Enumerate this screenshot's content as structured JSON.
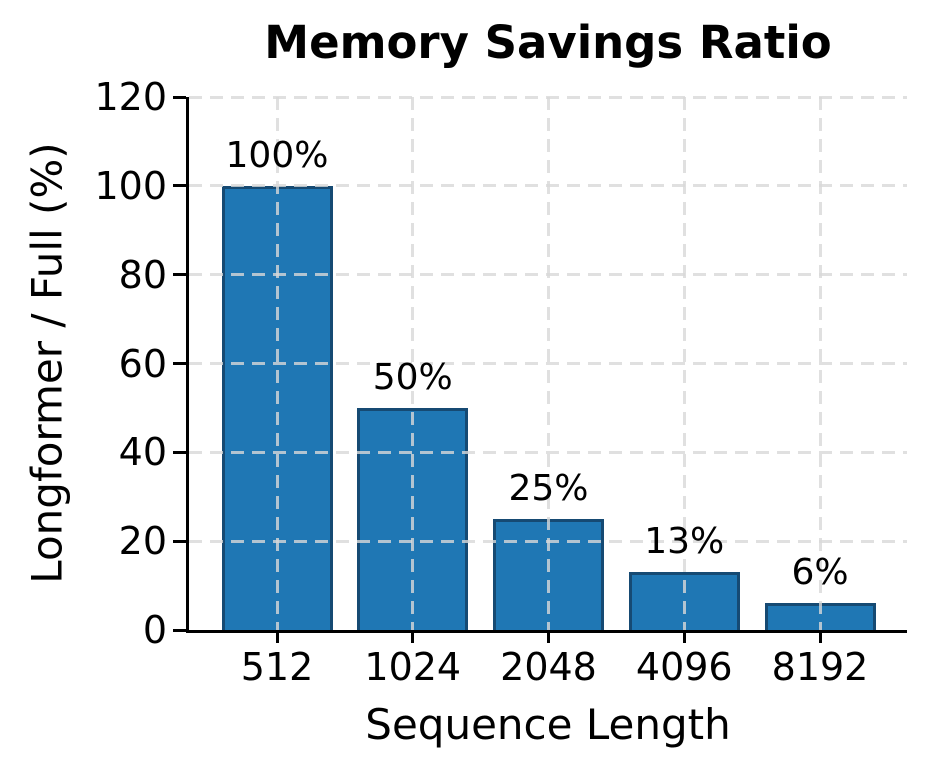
{
  "chart_data": {
    "type": "bar",
    "title": "Memory Savings Ratio",
    "xlabel": "Sequence Length",
    "ylabel": "Longformer / Full (%)",
    "categories": [
      "512",
      "1024",
      "2048",
      "4096",
      "8192"
    ],
    "values": [
      100,
      50,
      25,
      13,
      6
    ],
    "bar_labels": [
      "100%",
      "50%",
      "25%",
      "13%",
      "6%"
    ],
    "ylim": [
      0,
      120
    ],
    "yticks": [
      0,
      20,
      40,
      60,
      80,
      100,
      120
    ],
    "grid": "dashed, both axes, drawn over bars",
    "legend": "none",
    "bar_color": "#1f77b4",
    "bar_edge_color": "#164a73",
    "grid_color": "#d8d8d8",
    "axis_color": "#000000",
    "text_color": "#000000",
    "background_color": "#ffffff"
  }
}
